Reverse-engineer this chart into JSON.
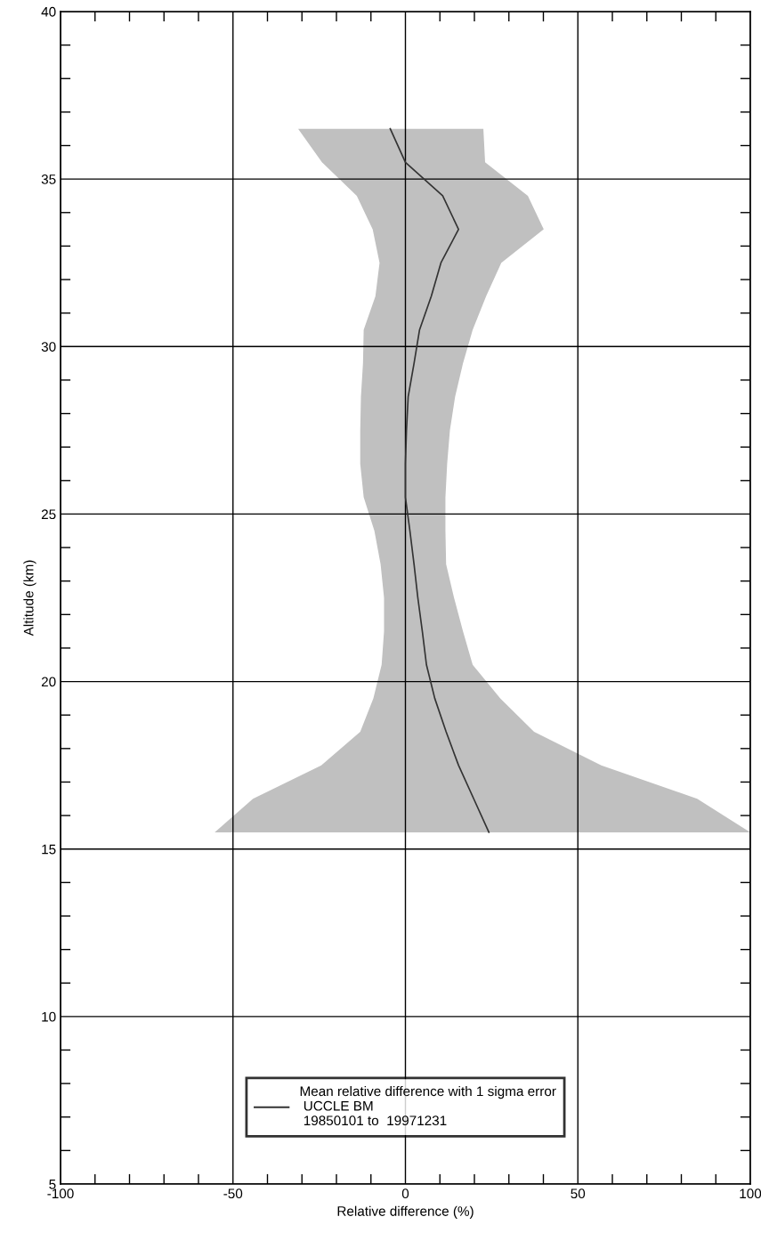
{
  "chart_data": {
    "type": "line",
    "xlabel": "Relative difference (%)",
    "ylabel": "Altitude (km)",
    "xlim": [
      -100,
      100
    ],
    "ylim": [
      5,
      40
    ],
    "xticks": [
      -100,
      {
        "value": -90,
        "label": null
      },
      {
        "value": -80,
        "label": null
      },
      {
        "value": -70,
        "label": null
      },
      {
        "value": -60,
        "label": null
      },
      -50,
      {
        "value": -40,
        "label": null
      },
      {
        "value": -30,
        "label": null
      },
      {
        "value": -20,
        "label": null
      },
      {
        "value": -10,
        "label": null
      },
      0,
      {
        "value": 10,
        "label": null
      },
      {
        "value": 20,
        "label": null
      },
      {
        "value": 30,
        "label": null
      },
      {
        "value": 40,
        "label": null
      },
      50,
      {
        "value": 60,
        "label": null
      },
      {
        "value": 70,
        "label": null
      },
      {
        "value": 80,
        "label": null
      },
      {
        "value": 90,
        "label": null
      },
      100
    ],
    "yticks": [
      5,
      {
        "value": 6,
        "label": null
      },
      {
        "value": 7,
        "label": null
      },
      {
        "value": 8,
        "label": null
      },
      {
        "value": 9,
        "label": null
      },
      10,
      {
        "value": 11,
        "label": null
      },
      {
        "value": 12,
        "label": null
      },
      {
        "value": 13,
        "label": null
      },
      {
        "value": 14,
        "label": null
      },
      15,
      {
        "value": 16,
        "label": null
      },
      {
        "value": 17,
        "label": null
      },
      {
        "value": 18,
        "label": null
      },
      {
        "value": 19,
        "label": null
      },
      20,
      {
        "value": 21,
        "label": null
      },
      {
        "value": 22,
        "label": null
      },
      {
        "value": 23,
        "label": null
      },
      {
        "value": 24,
        "label": null
      },
      25,
      {
        "value": 26,
        "label": null
      },
      {
        "value": 27,
        "label": null
      },
      {
        "value": 28,
        "label": null
      },
      {
        "value": 29,
        "label": null
      },
      30,
      {
        "value": 31,
        "label": null
      },
      {
        "value": 32,
        "label": null
      },
      {
        "value": 33,
        "label": null
      },
      {
        "value": 34,
        "label": null
      },
      35,
      {
        "value": 36,
        "label": null
      },
      {
        "value": 37,
        "label": null
      },
      {
        "value": 38,
        "label": null
      },
      {
        "value": 39,
        "label": null
      },
      40
    ],
    "grid": true,
    "legend": "bottom",
    "marker": "none",
    "line_style": "solid",
    "series": [
      {
        "type": "area",
        "color": "#c0c0c0",
        "x": [
          -55.3,
          -44.2,
          -24.4,
          -13.1,
          -9.3,
          -6.9,
          -6.2,
          -6.2,
          -7.2,
          -9.0,
          -12.1,
          -13.1,
          -13.1,
          -12.9,
          -12.3,
          -12.1,
          -8.7,
          -7.5,
          -9.5,
          -14.1,
          -24.2,
          -31.1,
          22.6,
          23.1,
          35.5,
          40.1,
          27.8,
          23.4,
          19.5,
          16.7,
          14.4,
          12.9,
          12.1,
          11.6,
          11.6,
          11.8,
          14.1,
          16.7,
          19.5,
          27.5,
          37.3,
          56.8,
          84.6,
          100
        ],
        "values": [
          15.5,
          16.5,
          17.5,
          18.5,
          19.5,
          20.5,
          21.5,
          22.5,
          23.5,
          24.5,
          25.5,
          26.5,
          27.5,
          28.5,
          29.5,
          30.5,
          31.5,
          32.5,
          33.5,
          34.5,
          35.5,
          36.5,
          36.5,
          35.5,
          34.5,
          33.5,
          32.5,
          31.5,
          30.5,
          29.5,
          28.5,
          27.5,
          26.5,
          25.5,
          24.5,
          23.5,
          22.5,
          21.5,
          20.5,
          19.5,
          18.5,
          17.5,
          16.5,
          15.5
        ]
      },
      {
        "name": "Mean relative difference with 1 sigma error\n UCCLE BM\n 19850101 to  19971231",
        "color": "#333333",
        "x": [
          24.2,
          19.8,
          15.4,
          11.8,
          8.5,
          6.1,
          4.9,
          3.6,
          2.5,
          1.3,
          0,
          0,
          0.3,
          0.8,
          2.5,
          4.1,
          7.5,
          10.3,
          15.4,
          10.8,
          0,
          -4.4
        ],
        "values": [
          15.5,
          16.5,
          17.5,
          18.5,
          19.5,
          20.5,
          21.5,
          22.5,
          23.5,
          24.5,
          25.5,
          26.5,
          27.5,
          28.5,
          29.5,
          30.5,
          31.5,
          32.5,
          33.5,
          34.5,
          35.5,
          36.5
        ]
      }
    ]
  }
}
